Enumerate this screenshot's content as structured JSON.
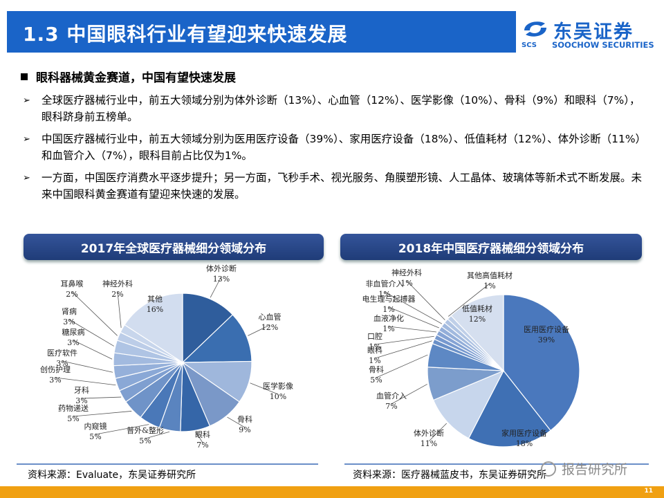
{
  "title": "1.3 中国眼科行业有望迎来快速发展",
  "logo": {
    "cn": "东吴证券",
    "en": "SOOCHOW SECURITIES",
    "abbr": "SCS"
  },
  "heading": "眼科器械黄金赛道，中国有望快速发展",
  "bullets": [
    "全球医疗器械行业中，前五大领域分别为体外诊断（13%）、心血管（12%）、医学影像（10%）、骨科（9%）和眼科（7%），眼科跻身前五榜单。",
    "中国医疗器械行业中，前五大领域分别为医用医疗设备（39%）、家用医疗设备（18%）、低值耗材（12%）、体外诊断（11%）和血管介入（7%），眼科目前占比仅为1%。",
    "一方面，中国医疗消费水平逐步提升；另一方面，飞秒手术、视光服务、角膜塑形镜、人工晶体、玻璃体等新术式不断发展。未来中国眼科黄金赛道有望迎来快速的发展。"
  ],
  "bullet_marker": "➢",
  "chart_data": [
    {
      "type": "pie",
      "title": "2017年全球医疗器械细分领域分布",
      "categories": [
        "体外诊断",
        "心血管",
        "医学影像",
        "骨科",
        "眼科",
        "普外&整形",
        "内窥镜",
        "药物递送",
        "牙科",
        "创伤护理",
        "医疗软件",
        "糖尿病",
        "肾病",
        "耳鼻喉",
        "神经外科",
        "其他"
      ],
      "values": [
        13,
        12,
        10,
        9,
        7,
        5,
        5,
        5,
        3,
        3,
        3,
        3,
        3,
        2,
        2,
        16
      ],
      "labels": [
        "13%",
        "12%",
        "10%",
        "9%",
        "7%",
        "5%",
        "5%",
        "5%",
        "3%",
        "3%",
        "3%",
        "3%",
        "3%",
        "2%",
        "2%",
        "16%"
      ],
      "colors": [
        "#2f5d9c",
        "#3a6eb0",
        "#9fb7dc",
        "#7a98c8",
        "#3566a8",
        "#5a84bf",
        "#4a78b8",
        "#6f93c8",
        "#7f9fd0",
        "#8aa8d6",
        "#95b0da",
        "#a2badf",
        "#afc4e4",
        "#bccde8",
        "#c8d6ec",
        "#d2ddef"
      ],
      "source": "资料来源：Evaluate，东吴证券研究所"
    },
    {
      "type": "pie",
      "title": "2018年中国医疗器械细分领域分布",
      "categories": [
        "医用医疗设备",
        "家用医疗设备",
        "体外诊断",
        "血管介入",
        "骨科",
        "眼科",
        "口腔",
        "血液净化",
        "电生理与起搏器",
        "非血管介入",
        "神经外科",
        "其他高值耗材",
        "低值耗材"
      ],
      "values": [
        39,
        18,
        11,
        7,
        5,
        1,
        1,
        1,
        1,
        1,
        1,
        1,
        12
      ],
      "labels": [
        "39%",
        "18%",
        "11%",
        "7%",
        "5%",
        "1%",
        "1%",
        "1%",
        "1%",
        "1%",
        "1%",
        "1%",
        "12%"
      ],
      "colors": [
        "#4a78bd",
        "#3f70b4",
        "#c7d6ec",
        "#7c9dcc",
        "#5d88c4",
        "#6a90c8",
        "#7799cf",
        "#85a3d4",
        "#93aed9",
        "#a1b9de",
        "#b0c4e3",
        "#bfcfe8",
        "#d5dfef"
      ],
      "source": "资料来源：医疗器械蓝皮书，东吴证券研究所"
    }
  ],
  "watermark": "报告研究所",
  "page_number": "11"
}
